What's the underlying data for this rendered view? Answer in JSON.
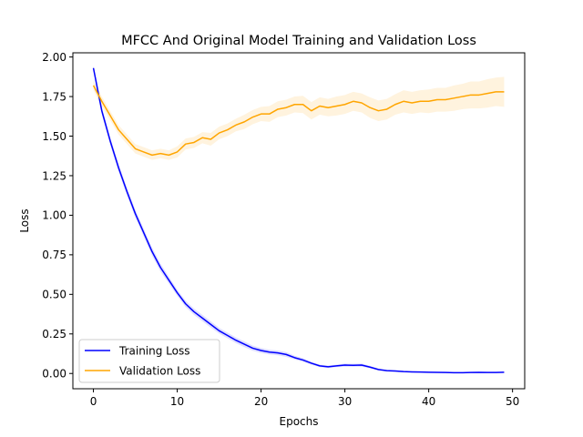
{
  "chart_data": {
    "type": "line",
    "title": "MFCC And Original Model Training and Validation Loss",
    "xlabel": "Epochs",
    "ylabel": "Loss",
    "xlim": [
      -2.45,
      51.45
    ],
    "ylim": [
      -0.0965,
      2.0265
    ],
    "xticks": [
      0,
      10,
      20,
      30,
      40,
      50
    ],
    "yticks": [
      0.0,
      0.25,
      0.5,
      0.75,
      1.0,
      1.25,
      1.5,
      1.75,
      2.0
    ],
    "xtick_labels": [
      "0",
      "10",
      "20",
      "30",
      "40",
      "50"
    ],
    "ytick_labels": [
      "0.00",
      "0.25",
      "0.50",
      "0.75",
      "1.00",
      "1.25",
      "1.50",
      "1.75",
      "2.00"
    ],
    "grid": false,
    "legend_position": "lower-left",
    "x": [
      0,
      1,
      2,
      3,
      4,
      5,
      6,
      7,
      8,
      9,
      10,
      11,
      12,
      13,
      14,
      15,
      16,
      17,
      18,
      19,
      20,
      21,
      22,
      23,
      24,
      25,
      26,
      27,
      28,
      29,
      30,
      31,
      32,
      33,
      34,
      35,
      36,
      37,
      38,
      39,
      40,
      41,
      42,
      43,
      44,
      45,
      46,
      47,
      48,
      49
    ],
    "series": [
      {
        "name": "Training Loss",
        "color": "#0000ff",
        "band_color": "#0000ff",
        "values": [
          1.93,
          1.66,
          1.47,
          1.3,
          1.15,
          1.01,
          0.89,
          0.77,
          0.67,
          0.59,
          0.51,
          0.44,
          0.39,
          0.35,
          0.31,
          0.27,
          0.24,
          0.21,
          0.185,
          0.16,
          0.145,
          0.135,
          0.13,
          0.12,
          0.1,
          0.085,
          0.065,
          0.048,
          0.042,
          0.048,
          0.053,
          0.052,
          0.053,
          0.04,
          0.025,
          0.018,
          0.016,
          0.012,
          0.01,
          0.009,
          0.008,
          0.007,
          0.006,
          0.005,
          0.005,
          0.006,
          0.007,
          0.006,
          0.006,
          0.008
        ],
        "band": [
          0.015,
          0.025,
          0.025,
          0.025,
          0.025,
          0.025,
          0.025,
          0.025,
          0.025,
          0.022,
          0.02,
          0.02,
          0.02,
          0.02,
          0.02,
          0.018,
          0.018,
          0.018,
          0.018,
          0.016,
          0.016,
          0.015,
          0.015,
          0.015,
          0.012,
          0.012,
          0.01,
          0.008,
          0.008,
          0.008,
          0.01,
          0.01,
          0.01,
          0.008,
          0.006,
          0.005,
          0.005,
          0.004,
          0.004,
          0.004,
          0.003,
          0.003,
          0.003,
          0.003,
          0.003,
          0.003,
          0.003,
          0.003,
          0.003,
          0.003
        ]
      },
      {
        "name": "Validation Loss",
        "color": "#ffa500",
        "band_color": "#ffa500",
        "values": [
          1.82,
          1.72,
          1.63,
          1.54,
          1.48,
          1.42,
          1.4,
          1.38,
          1.39,
          1.38,
          1.4,
          1.45,
          1.46,
          1.49,
          1.48,
          1.52,
          1.54,
          1.57,
          1.59,
          1.62,
          1.64,
          1.64,
          1.67,
          1.68,
          1.7,
          1.7,
          1.66,
          1.69,
          1.68,
          1.69,
          1.7,
          1.72,
          1.71,
          1.68,
          1.66,
          1.67,
          1.7,
          1.72,
          1.71,
          1.72,
          1.72,
          1.73,
          1.73,
          1.74,
          1.75,
          1.76,
          1.76,
          1.77,
          1.78,
          1.78
        ],
        "band": [
          0.03,
          0.03,
          0.03,
          0.03,
          0.03,
          0.03,
          0.03,
          0.03,
          0.03,
          0.03,
          0.035,
          0.035,
          0.035,
          0.035,
          0.04,
          0.04,
          0.04,
          0.04,
          0.045,
          0.045,
          0.045,
          0.05,
          0.05,
          0.05,
          0.05,
          0.055,
          0.055,
          0.055,
          0.055,
          0.06,
          0.06,
          0.06,
          0.06,
          0.065,
          0.065,
          0.065,
          0.065,
          0.07,
          0.07,
          0.07,
          0.075,
          0.075,
          0.075,
          0.08,
          0.08,
          0.085,
          0.085,
          0.09,
          0.09,
          0.095
        ]
      }
    ]
  }
}
